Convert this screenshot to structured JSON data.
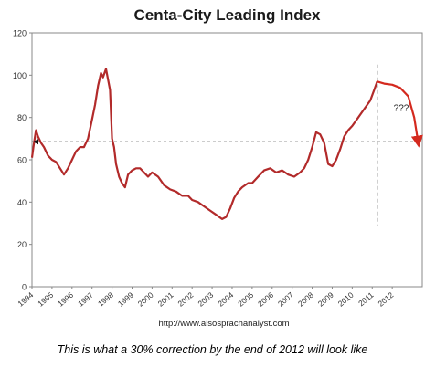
{
  "chart_data": {
    "type": "line",
    "title": "Centa-City Leading Index",
    "source_note": "http://www.alsosprachanalyst.com",
    "xlabel": "",
    "ylabel": "",
    "ylim": [
      0,
      120
    ],
    "xlim": [
      1994,
      2013.5
    ],
    "y_ticks": [
      "0",
      "20",
      "40",
      "60",
      "80",
      "100",
      "120"
    ],
    "x_ticks": [
      "1994",
      "1995",
      "1996",
      "1997",
      "1998",
      "1999",
      "2000",
      "2001",
      "2002",
      "2003",
      "2004",
      "2005",
      "2006",
      "2007",
      "2008",
      "2009",
      "2010",
      "2011",
      "2012"
    ],
    "grid": false,
    "legend": "none",
    "colors": {
      "series": "#b22a2a",
      "projection": "#d4291e",
      "reference": "#333333",
      "frame": "#888888"
    },
    "series": [
      {
        "values_x": [
          1994.0,
          1994.1,
          1994.2,
          1994.3,
          1994.45,
          1994.6,
          1994.8,
          1995.0,
          1995.2,
          1995.4,
          1995.6,
          1995.8,
          1996.0,
          1996.2,
          1996.4,
          1996.6,
          1996.8,
          1997.0,
          1997.15,
          1997.3,
          1997.45,
          1997.55,
          1997.7,
          1997.8,
          1997.9,
          1998.0,
          1998.1,
          1998.2,
          1998.35,
          1998.5,
          1998.65,
          1998.8,
          1999.0,
          1999.2,
          1999.4,
          1999.6,
          1999.8,
          2000.0,
          2000.3,
          2000.6,
          2000.9,
          2001.2,
          2001.5,
          2001.8,
          2002.0,
          2002.3,
          2002.6,
          2002.9,
          2003.2,
          2003.5,
          2003.7,
          2003.9,
          2004.1,
          2004.3,
          2004.5,
          2004.8,
          2005.0,
          2005.3,
          2005.6,
          2005.9,
          2006.2,
          2006.5,
          2006.8,
          2007.1,
          2007.4,
          2007.6,
          2007.8,
          2008.0,
          2008.2,
          2008.4,
          2008.6,
          2008.8,
          2009.0,
          2009.2,
          2009.4,
          2009.6,
          2009.8,
          2010.0,
          2010.3,
          2010.6,
          2010.9,
          2011.1,
          2011.25
        ],
        "values": [
          61,
          68,
          74,
          71,
          68,
          66,
          62,
          60,
          59,
          56,
          53,
          56,
          60,
          64,
          66,
          66,
          70,
          79,
          86,
          95,
          101,
          99,
          103,
          98,
          93,
          70,
          66,
          58,
          52,
          49,
          47,
          53,
          55,
          56,
          56,
          54,
          52,
          54,
          52,
          48,
          46,
          45,
          43,
          43,
          41,
          40,
          38,
          36,
          34,
          32,
          33,
          37,
          42,
          45,
          47,
          49,
          49,
          52,
          55,
          56,
          54,
          55,
          53,
          52,
          54,
          56,
          60,
          66,
          73,
          72,
          68,
          58,
          57,
          60,
          65,
          71,
          74,
          76,
          80,
          84,
          88,
          93,
          97
        ]
      },
      {
        "note": "projection",
        "values_x": [
          2011.25,
          2011.6,
          2012.0,
          2012.4,
          2012.8,
          2013.1,
          2013.3
        ],
        "values": [
          97,
          96,
          95.5,
          94,
          90,
          80,
          68
        ]
      }
    ],
    "reference_line": {
      "y": 68.5
    },
    "vertical_marker": {
      "x": 2011.25,
      "ymin": 29,
      "ymax": 105
    },
    "annotations": [
      {
        "text": "???",
        "x": 2012.45,
        "y": 83
      }
    ]
  },
  "caption": "This is what a 30% correction by the end of 2012 will look like"
}
